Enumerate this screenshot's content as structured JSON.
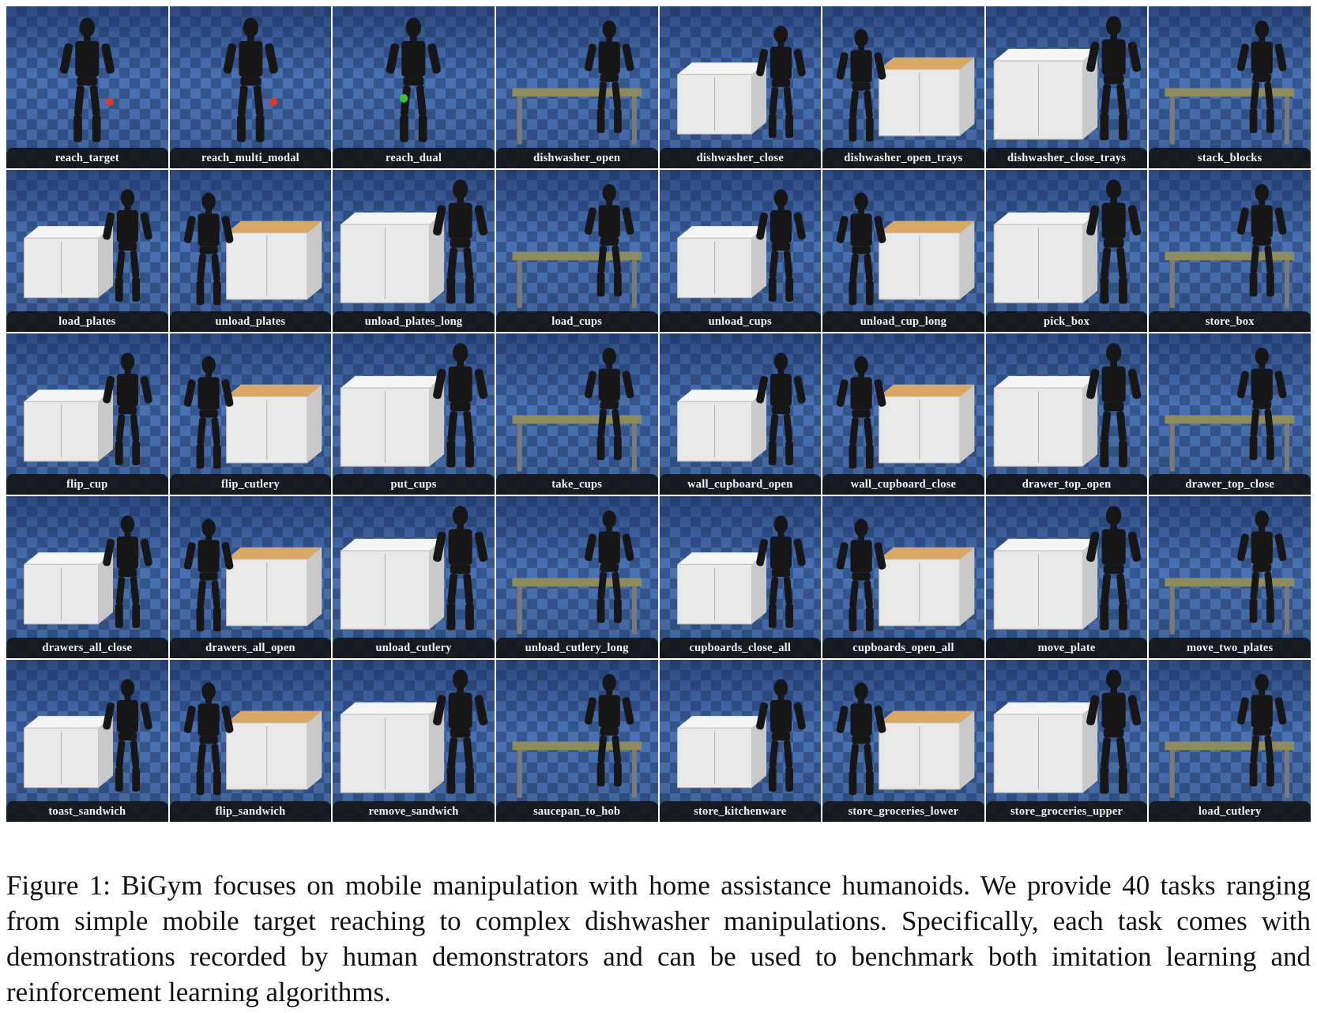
{
  "tasks": [
    "reach_target",
    "reach_multi_modal",
    "reach_dual",
    "dishwasher_open",
    "dishwasher_close",
    "dishwasher_open_trays",
    "dishwasher_close_trays",
    "stack_blocks",
    "load_plates",
    "unload_plates",
    "unload_plates_long",
    "load_cups",
    "unload_cups",
    "unload_cup_long",
    "pick_box",
    "store_box",
    "flip_cup",
    "flip_cutlery",
    "put_cups",
    "take_cups",
    "wall_cupboard_open",
    "wall_cupboard_close",
    "drawer_top_open",
    "drawer_top_close",
    "drawers_all_close",
    "drawers_all_open",
    "unload_cutlery",
    "unload_cutlery_long",
    "cupboards_close_all",
    "cupboards_open_all",
    "move_plate",
    "move_two_plates",
    "toast_sandwich",
    "flip_sandwich",
    "remove_sandwich",
    "saucepan_to_hob",
    "store_kitchenware",
    "store_groceries_lower",
    "store_groceries_upper",
    "load_cutlery"
  ],
  "caption": "Figure 1: BiGym focuses on mobile manipulation with home assistance humanoids. We provide 40 tasks ranging from simple mobile target reaching to complex dishwasher manipulations. Specifically, each task comes with demonstrations recorded by human demonstrators and can be used to benchmark both imitation learning and reinforcement learning algorithms.",
  "colors": {
    "floor_dark": "#35568f",
    "floor_light": "#4a72b3",
    "label_bg": "#121212",
    "label_text": "#f2f2f2",
    "robot": "#161616",
    "cabinet": "#e9e9e9",
    "countertop": "#d9a865"
  }
}
